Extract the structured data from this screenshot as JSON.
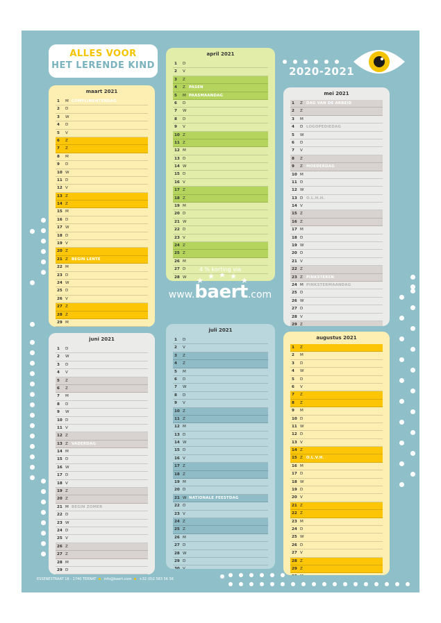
{
  "header": {
    "brand_line1": "ALLES VOOR",
    "brand_line2": "HET LERENDE KIND",
    "school_year": "2020-2021"
  },
  "icons": {
    "logo": "eye-icon",
    "stars": "star-icon"
  },
  "colors": {
    "poster_background": "#8fbfc9",
    "accent_yellow": "#f5c400",
    "text": "#333333"
  },
  "promo": {
    "text": "4 % korting via",
    "www": "www.",
    "name": "baert",
    "tld": ".com"
  },
  "footer": {
    "address": "ESSENESTRAAT 16 - 1740 TERNAT",
    "email": "info@baert.com",
    "phone": "+32 (0)2 583 56 56"
  },
  "months": [
    {
      "title": "maart 2021",
      "colors": {
        "bg": "#fdeeb2",
        "weekend": "#fcc505"
      },
      "days": [
        {
          "n": "1",
          "w": "M",
          "note": "COMPLIMENTENDAG"
        },
        {
          "n": "2",
          "w": "D"
        },
        {
          "n": "3",
          "w": "W"
        },
        {
          "n": "4",
          "w": "D"
        },
        {
          "n": "5",
          "w": "V"
        },
        {
          "n": "6",
          "w": "Z",
          "we": true
        },
        {
          "n": "7",
          "w": "Z",
          "we": true
        },
        {
          "n": "8",
          "w": "M"
        },
        {
          "n": "9",
          "w": "D"
        },
        {
          "n": "10",
          "w": "W"
        },
        {
          "n": "11",
          "w": "D"
        },
        {
          "n": "12",
          "w": "V"
        },
        {
          "n": "13",
          "w": "Z",
          "we": true
        },
        {
          "n": "14",
          "w": "Z",
          "we": true
        },
        {
          "n": "15",
          "w": "M"
        },
        {
          "n": "16",
          "w": "D"
        },
        {
          "n": "17",
          "w": "W"
        },
        {
          "n": "18",
          "w": "D"
        },
        {
          "n": "19",
          "w": "V"
        },
        {
          "n": "20",
          "w": "Z",
          "we": true
        },
        {
          "n": "21",
          "w": "Z",
          "we": true,
          "note": "BEGIN LENTE"
        },
        {
          "n": "22",
          "w": "M"
        },
        {
          "n": "23",
          "w": "D"
        },
        {
          "n": "24",
          "w": "W"
        },
        {
          "n": "25",
          "w": "D"
        },
        {
          "n": "26",
          "w": "V"
        },
        {
          "n": "27",
          "w": "Z",
          "we": true
        },
        {
          "n": "28",
          "w": "Z",
          "we": true
        },
        {
          "n": "29",
          "w": "M"
        },
        {
          "n": "30",
          "w": "D"
        },
        {
          "n": "31",
          "w": "W"
        }
      ]
    },
    {
      "title": "april 2021",
      "colors": {
        "bg": "#e2edaa",
        "weekend": "#b4d45e"
      },
      "days": [
        {
          "n": "1",
          "w": "D"
        },
        {
          "n": "2",
          "w": "V"
        },
        {
          "n": "3",
          "w": "Z",
          "we": true
        },
        {
          "n": "4",
          "w": "Z",
          "we": true,
          "note": "PASEN"
        },
        {
          "n": "5",
          "w": "M",
          "we": true,
          "note": "PAASMAANDAG"
        },
        {
          "n": "6",
          "w": "D"
        },
        {
          "n": "7",
          "w": "W"
        },
        {
          "n": "8",
          "w": "D"
        },
        {
          "n": "9",
          "w": "V"
        },
        {
          "n": "10",
          "w": "Z",
          "we": true
        },
        {
          "n": "11",
          "w": "Z",
          "we": true
        },
        {
          "n": "12",
          "w": "M"
        },
        {
          "n": "13",
          "w": "D"
        },
        {
          "n": "14",
          "w": "W"
        },
        {
          "n": "15",
          "w": "D"
        },
        {
          "n": "16",
          "w": "V"
        },
        {
          "n": "17",
          "w": "Z",
          "we": true
        },
        {
          "n": "18",
          "w": "Z",
          "we": true
        },
        {
          "n": "19",
          "w": "M"
        },
        {
          "n": "20",
          "w": "D"
        },
        {
          "n": "21",
          "w": "W"
        },
        {
          "n": "22",
          "w": "D"
        },
        {
          "n": "23",
          "w": "V"
        },
        {
          "n": "24",
          "w": "Z",
          "we": true
        },
        {
          "n": "25",
          "w": "Z",
          "we": true
        },
        {
          "n": "26",
          "w": "M"
        },
        {
          "n": "27",
          "w": "D"
        },
        {
          "n": "28",
          "w": "W"
        },
        {
          "n": "29",
          "w": "D"
        },
        {
          "n": "30",
          "w": "V"
        }
      ]
    },
    {
      "title": "mei 2021",
      "colors": {
        "bg": "#ebebea",
        "weekend": "#d8d2d1"
      },
      "days": [
        {
          "n": "1",
          "w": "Z",
          "we": true,
          "note": "DAG VAN DE ARBEID"
        },
        {
          "n": "2",
          "w": "Z",
          "we": true
        },
        {
          "n": "3",
          "w": "M"
        },
        {
          "n": "4",
          "w": "D",
          "note": "LOGOPEDIEDAG",
          "grey": true
        },
        {
          "n": "5",
          "w": "W"
        },
        {
          "n": "6",
          "w": "D"
        },
        {
          "n": "7",
          "w": "V"
        },
        {
          "n": "8",
          "w": "Z",
          "we": true
        },
        {
          "n": "9",
          "w": "Z",
          "we": true,
          "note": "MOEDERDAG"
        },
        {
          "n": "10",
          "w": "M"
        },
        {
          "n": "11",
          "w": "D"
        },
        {
          "n": "12",
          "w": "W"
        },
        {
          "n": "13",
          "w": "D",
          "note": "O.L.H.H.",
          "grey": true
        },
        {
          "n": "14",
          "w": "V"
        },
        {
          "n": "15",
          "w": "Z",
          "we": true
        },
        {
          "n": "16",
          "w": "Z",
          "we": true
        },
        {
          "n": "17",
          "w": "M"
        },
        {
          "n": "18",
          "w": "D"
        },
        {
          "n": "19",
          "w": "W"
        },
        {
          "n": "20",
          "w": "D"
        },
        {
          "n": "21",
          "w": "V"
        },
        {
          "n": "22",
          "w": "Z",
          "we": true
        },
        {
          "n": "23",
          "w": "Z",
          "we": true,
          "note": "PINKSTEREN"
        },
        {
          "n": "24",
          "w": "M",
          "note": "PINKSTERMAANDAG",
          "grey": true
        },
        {
          "n": "25",
          "w": "D"
        },
        {
          "n": "26",
          "w": "W"
        },
        {
          "n": "27",
          "w": "D"
        },
        {
          "n": "28",
          "w": "V"
        },
        {
          "n": "29",
          "w": "Z",
          "we": true
        },
        {
          "n": "30",
          "w": "Z",
          "we": true
        },
        {
          "n": "31",
          "w": "M"
        }
      ]
    },
    {
      "title": "juni 2021",
      "colors": {
        "bg": "#ebebea",
        "weekend": "#d8d2d1"
      },
      "days": [
        {
          "n": "1",
          "w": "D"
        },
        {
          "n": "2",
          "w": "W"
        },
        {
          "n": "3",
          "w": "D"
        },
        {
          "n": "4",
          "w": "V"
        },
        {
          "n": "5",
          "w": "Z",
          "we": true
        },
        {
          "n": "6",
          "w": "Z",
          "we": true
        },
        {
          "n": "7",
          "w": "M"
        },
        {
          "n": "8",
          "w": "D"
        },
        {
          "n": "9",
          "w": "W"
        },
        {
          "n": "10",
          "w": "D"
        },
        {
          "n": "11",
          "w": "V"
        },
        {
          "n": "12",
          "w": "Z",
          "we": true
        },
        {
          "n": "13",
          "w": "Z",
          "we": true,
          "note": "VADERDAG"
        },
        {
          "n": "14",
          "w": "M"
        },
        {
          "n": "15",
          "w": "D"
        },
        {
          "n": "16",
          "w": "W"
        },
        {
          "n": "17",
          "w": "D"
        },
        {
          "n": "18",
          "w": "V"
        },
        {
          "n": "19",
          "w": "Z",
          "we": true
        },
        {
          "n": "20",
          "w": "Z",
          "we": true
        },
        {
          "n": "21",
          "w": "M",
          "note": "BEGIN ZOMER",
          "grey": true
        },
        {
          "n": "22",
          "w": "D"
        },
        {
          "n": "23",
          "w": "W"
        },
        {
          "n": "24",
          "w": "D"
        },
        {
          "n": "25",
          "w": "V"
        },
        {
          "n": "26",
          "w": "Z",
          "we": true
        },
        {
          "n": "27",
          "w": "Z",
          "we": true
        },
        {
          "n": "28",
          "w": "M"
        },
        {
          "n": "29",
          "w": "D"
        },
        {
          "n": "30",
          "w": "W"
        }
      ]
    },
    {
      "title": "juli 2021",
      "colors": {
        "bg": "#b9d7dc",
        "weekend": "#8fbcc6"
      },
      "days": [
        {
          "n": "1",
          "w": "D"
        },
        {
          "n": "2",
          "w": "V"
        },
        {
          "n": "3",
          "w": "Z",
          "we": true
        },
        {
          "n": "4",
          "w": "Z",
          "we": true
        },
        {
          "n": "5",
          "w": "M"
        },
        {
          "n": "6",
          "w": "D"
        },
        {
          "n": "7",
          "w": "W"
        },
        {
          "n": "8",
          "w": "D"
        },
        {
          "n": "9",
          "w": "V"
        },
        {
          "n": "10",
          "w": "Z",
          "we": true
        },
        {
          "n": "11",
          "w": "Z",
          "we": true
        },
        {
          "n": "12",
          "w": "M"
        },
        {
          "n": "13",
          "w": "D"
        },
        {
          "n": "14",
          "w": "W"
        },
        {
          "n": "15",
          "w": "D"
        },
        {
          "n": "16",
          "w": "V"
        },
        {
          "n": "17",
          "w": "Z",
          "we": true
        },
        {
          "n": "18",
          "w": "Z",
          "we": true
        },
        {
          "n": "19",
          "w": "M"
        },
        {
          "n": "20",
          "w": "D"
        },
        {
          "n": "21",
          "w": "W",
          "we": true,
          "note": "NATIONALE FEESTDAG"
        },
        {
          "n": "22",
          "w": "D"
        },
        {
          "n": "23",
          "w": "V"
        },
        {
          "n": "24",
          "w": "Z",
          "we": true
        },
        {
          "n": "25",
          "w": "Z",
          "we": true
        },
        {
          "n": "26",
          "w": "M"
        },
        {
          "n": "27",
          "w": "D"
        },
        {
          "n": "28",
          "w": "W"
        },
        {
          "n": "29",
          "w": "D"
        },
        {
          "n": "30",
          "w": "V"
        },
        {
          "n": "31",
          "w": "Z",
          "we": true
        }
      ]
    },
    {
      "title": "augustus 2021",
      "colors": {
        "bg": "#fdeeb2",
        "weekend": "#fcc505"
      },
      "days": [
        {
          "n": "1",
          "w": "Z",
          "we": true
        },
        {
          "n": "2",
          "w": "M"
        },
        {
          "n": "3",
          "w": "D"
        },
        {
          "n": "4",
          "w": "W"
        },
        {
          "n": "5",
          "w": "D"
        },
        {
          "n": "6",
          "w": "V"
        },
        {
          "n": "7",
          "w": "Z",
          "we": true
        },
        {
          "n": "8",
          "w": "Z",
          "we": true
        },
        {
          "n": "9",
          "w": "M"
        },
        {
          "n": "10",
          "w": "D"
        },
        {
          "n": "11",
          "w": "W"
        },
        {
          "n": "12",
          "w": "D"
        },
        {
          "n": "13",
          "w": "V"
        },
        {
          "n": "14",
          "w": "Z",
          "we": true
        },
        {
          "n": "15",
          "w": "Z",
          "we": true,
          "note": "O.L.V.H."
        },
        {
          "n": "16",
          "w": "M"
        },
        {
          "n": "17",
          "w": "D"
        },
        {
          "n": "18",
          "w": "W"
        },
        {
          "n": "19",
          "w": "D"
        },
        {
          "n": "20",
          "w": "V"
        },
        {
          "n": "21",
          "w": "Z",
          "we": true
        },
        {
          "n": "22",
          "w": "Z",
          "we": true
        },
        {
          "n": "23",
          "w": "M"
        },
        {
          "n": "24",
          "w": "D"
        },
        {
          "n": "25",
          "w": "W"
        },
        {
          "n": "26",
          "w": "D"
        },
        {
          "n": "27",
          "w": "V"
        },
        {
          "n": "28",
          "w": "Z",
          "we": true
        },
        {
          "n": "29",
          "w": "Z",
          "we": true
        },
        {
          "n": "30",
          "w": "M"
        },
        {
          "n": "31",
          "w": "D"
        }
      ]
    }
  ]
}
